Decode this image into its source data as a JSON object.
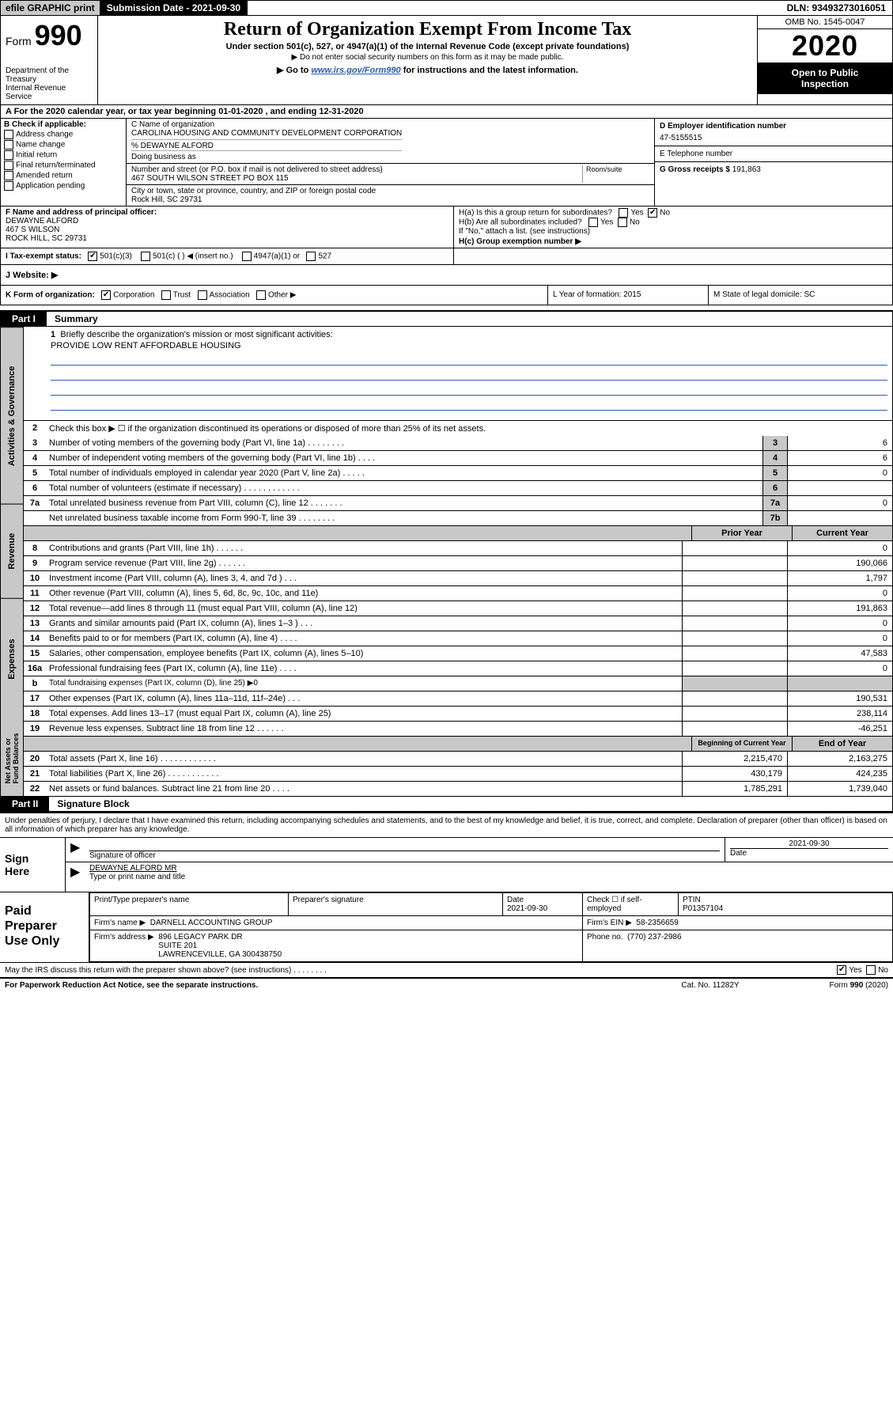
{
  "topbar": {
    "efile": "efile GRAPHIC print",
    "subdate": "Submission Date - 2021-09-30",
    "dln": "DLN: 93493273016051"
  },
  "header": {
    "form_prefix": "Form",
    "form_no": "990",
    "dept": "Department of the Treasury\nInternal Revenue Service",
    "title": "Return of Organization Exempt From Income Tax",
    "under": "Under section 501(c), 527, or 4947(a)(1) of the Internal Revenue Code (except private foundations)",
    "donot": "▶ Do not enter social security numbers on this form as it may be made public.",
    "goto_pre": "▶ Go to ",
    "goto_link": "www.irs.gov/Form990",
    "goto_post": " for instructions and the latest information.",
    "omb": "OMB No. 1545-0047",
    "year": "2020",
    "open": "Open to Public\nInspection"
  },
  "period": "A For the 2020 calendar year, or tax year beginning 01-01-2020     , and ending 12-31-2020",
  "boxB": {
    "title": "B Check if applicable:",
    "items": [
      "Address change",
      "Name change",
      "Initial return",
      "Final return/terminated",
      "Amended return",
      "Application pending"
    ]
  },
  "boxC": {
    "name_label": "C Name of organization",
    "name": "CAROLINA HOUSING AND COMMUNITY DEVELOPMENT CORPORATION",
    "care_of": "% DEWAYNE ALFORD",
    "dba_label": "Doing business as",
    "street_label": "Number and street (or P.O. box if mail is not delivered to street address)",
    "street": "467 SOUTH WILSON STREET PO BOX 115",
    "room_label": "Room/suite",
    "city_label": "City or town, state or province, country, and ZIP or foreign postal code",
    "city": "Rock Hill, SC  29731"
  },
  "boxD": {
    "ein_label": "D Employer identification number",
    "ein": "47-5155515",
    "tel_label": "E Telephone number",
    "gross_label": "G Gross receipts $",
    "gross": "191,863"
  },
  "boxF": {
    "label": "F  Name and address of principal officer:",
    "name": "DEWAYNE ALFORD",
    "addr1": "467 S WILSON",
    "addr2": "ROCK HILL, SC  29731"
  },
  "boxH": {
    "ha": "H(a)  Is this a group return for subordinates?",
    "yes": "Yes",
    "no": "No",
    "hb": "H(b)  Are all subordinates included?",
    "hb_note": "If \"No,\" attach a list. (see instructions)",
    "hc": "H(c)  Group exemption number ▶"
  },
  "tax_status": {
    "label": "I    Tax-exempt status:",
    "c3": "501(c)(3)",
    "c_ins": "501(c) (  ) ◀ (insert no.)",
    "a1": "4947(a)(1) or",
    "s527": "527"
  },
  "website": {
    "label": "J   Website: ▶"
  },
  "kform": {
    "k": "K Form of organization:",
    "corp": "Corporation",
    "trust": "Trust",
    "assoc": "Association",
    "other": "Other ▶",
    "l": "L Year of formation: 2015",
    "m": "M State of legal domicile: SC"
  },
  "part1": {
    "label": "Part I",
    "title": "Summary"
  },
  "summary": {
    "q1": "Briefly describe the organization's mission or most significant activities:",
    "mission": "PROVIDE LOW RENT AFFORDABLE HOUSING",
    "q2": "Check this box ▶ ☐  if the organization discontinued its operations or disposed of more than 25% of its net assets.",
    "lines_top": [
      {
        "n": "3",
        "d": "Number of voting members of the governing body (Part VI, line 1a)  .   .   .   .   .   .   .   .",
        "c": "3",
        "v": "6"
      },
      {
        "n": "4",
        "d": "Number of independent voting members of the governing body (Part VI, line 1b)  .   .   .   .",
        "c": "4",
        "v": "6"
      },
      {
        "n": "5",
        "d": "Total number of individuals employed in calendar year 2020 (Part V, line 2a)  .   .   .   .   .",
        "c": "5",
        "v": "0"
      },
      {
        "n": "6",
        "d": "Total number of volunteers (estimate if necessary)  .   .   .   .   .   .   .   .   .   .   .   .",
        "c": "6",
        "v": ""
      },
      {
        "n": "7a",
        "d": "Total unrelated business revenue from Part VIII, column (C), line 12  .   .   .   .   .   .   .",
        "c": "7a",
        "v": "0"
      },
      {
        "n": "",
        "d": "Net unrelated business taxable income from Form 990-T, line 39  .   .   .   .   .   .   .   .",
        "c": "7b",
        "v": ""
      }
    ],
    "hdr_prior": "Prior Year",
    "hdr_current": "Current Year",
    "revenue": [
      {
        "n": "8",
        "d": "Contributions and grants (Part VIII, line 1h)  .   .   .   .   .   .",
        "p": "",
        "c": "0"
      },
      {
        "n": "9",
        "d": "Program service revenue (Part VIII, line 2g)  .   .   .   .   .   .",
        "p": "",
        "c": "190,066"
      },
      {
        "n": "10",
        "d": "Investment income (Part VIII, column (A), lines 3, 4, and 7d )  .   .   .",
        "p": "",
        "c": "1,797"
      },
      {
        "n": "11",
        "d": "Other revenue (Part VIII, column (A), lines 5, 6d, 8c, 9c, 10c, and 11e)",
        "p": "",
        "c": "0"
      },
      {
        "n": "12",
        "d": "Total revenue—add lines 8 through 11 (must equal Part VIII, column (A), line 12)",
        "p": "",
        "c": "191,863"
      }
    ],
    "expenses": [
      {
        "n": "13",
        "d": "Grants and similar amounts paid (Part IX, column (A), lines 1–3 )   .   .   .",
        "p": "",
        "c": "0"
      },
      {
        "n": "14",
        "d": "Benefits paid to or for members (Part IX, column (A), line 4)  .   .   .   .",
        "p": "",
        "c": "0"
      },
      {
        "n": "15",
        "d": "Salaries, other compensation, employee benefits (Part IX, column (A), lines 5–10)",
        "p": "",
        "c": "47,583"
      },
      {
        "n": "16a",
        "d": "Professional fundraising fees (Part IX, column (A), line 11e)  .   .   .   .",
        "p": "",
        "c": "0"
      }
    ],
    "line_b": {
      "n": "b",
      "d": "Total fundraising expenses (Part IX, column (D), line 25) ▶0"
    },
    "expenses2": [
      {
        "n": "17",
        "d": "Other expenses (Part IX, column (A), lines 11a–11d, 11f–24e)  .   .   .",
        "p": "",
        "c": "190,531"
      },
      {
        "n": "18",
        "d": "Total expenses. Add lines 13–17 (must equal Part IX, column (A), line 25)",
        "p": "",
        "c": "238,114"
      },
      {
        "n": "19",
        "d": "Revenue less expenses. Subtract line 18 from line 12  .   .   .   .   .   .",
        "p": "",
        "c": "-46,251"
      }
    ],
    "hdr_beg": "Beginning of Current Year",
    "hdr_end": "End of Year",
    "net": [
      {
        "n": "20",
        "d": "Total assets (Part X, line 16)  .   .   .   .   .   .   .   .   .   .   .   .",
        "p": "2,215,470",
        "c": "2,163,275"
      },
      {
        "n": "21",
        "d": "Total liabilities (Part X, line 26)  .   .   .   .   .   .   .   .   .   .   .",
        "p": "430,179",
        "c": "424,235"
      },
      {
        "n": "22",
        "d": "Net assets or fund balances. Subtract line 21 from line 20  .   .   .   .",
        "p": "1,785,291",
        "c": "1,739,040"
      }
    ],
    "side_activities": "Activities & Governance",
    "side_revenue": "Revenue",
    "side_expenses": "Expenses",
    "side_net": "Net Assets or\nFund Balances"
  },
  "part2": {
    "label": "Part II",
    "title": "Signature Block"
  },
  "perjury": "Under penalties of perjury, I declare that I have examined this return, including accompanying schedules and statements, and to the best of my knowledge and belief, it is true, correct, and complete. Declaration of preparer (other than officer) is based on all information of which preparer has any knowledge.",
  "sign": {
    "here": "Sign\nHere",
    "sig_label": "Signature of officer",
    "date": "2021-09-30",
    "date_label": "Date",
    "name": "DEWAYNE ALFORD MR",
    "name_label": "Type or print name and title"
  },
  "prep": {
    "title": "Paid\nPreparer\nUse Only",
    "pt_name_label": "Print/Type preparer's name",
    "sig_label": "Preparer's signature",
    "date_label": "Date",
    "date": "2021-09-30",
    "check_label": "Check ☐ if self-employed",
    "ptin_label": "PTIN",
    "ptin": "P01357104",
    "firm_name_label": "Firm's name      ▶",
    "firm_name": "DARNELL ACCOUNTING GROUP",
    "firm_ein_label": "Firm's EIN ▶",
    "firm_ein": "58-2356659",
    "firm_addr_label": "Firm's address ▶",
    "firm_addr": "896 LEGACY PARK DR\nSUITE 201\nLAWRENCEVILLE, GA  300438750",
    "phone_label": "Phone no.",
    "phone": "(770) 237-2986"
  },
  "discuss": {
    "q": "May the IRS discuss this return with the preparer shown above? (see instructions)    .   .   .   .   .   .   .   .",
    "yes": "Yes",
    "no": "No"
  },
  "footer": {
    "pra": "For Paperwork Reduction Act Notice, see the separate instructions.",
    "cat": "Cat. No. 11282Y",
    "form": "Form 990 (2020)"
  },
  "colors": {
    "grey": "#c8c8c8",
    "link": "#2a5bb8"
  }
}
